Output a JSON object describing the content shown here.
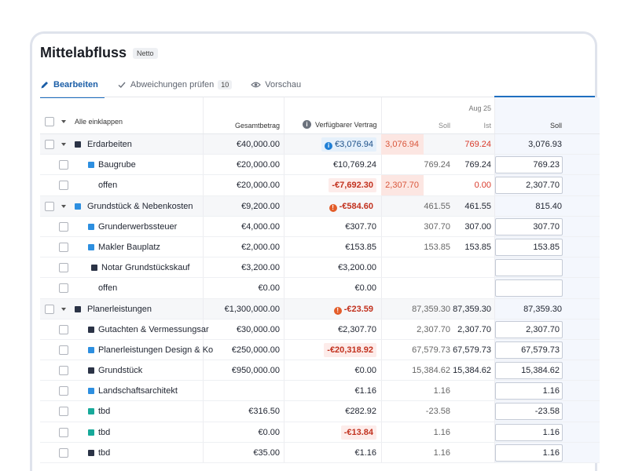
{
  "title": "Mittelabfluss",
  "title_badge": "Netto",
  "tabs": [
    {
      "label": "Bearbeiten",
      "icon": "pencil-icon"
    },
    {
      "label": "Abweichungen prüfen",
      "count": "10",
      "icon": "check-icon"
    },
    {
      "label": "Vorschau",
      "icon": "eye-icon"
    }
  ],
  "header": {
    "collapse_all": "Alle einklappen",
    "total": "Gesamtbetrag",
    "available": "Verfügbarer Vertrag",
    "month": "Aug 25",
    "soll": "Soll",
    "ist": "Ist",
    "soll2": "Soll"
  },
  "rows": [
    {
      "name": "Erdarbeiten",
      "total": "€40,000.00",
      "available": "€3,076.94",
      "soll": "3,076.94",
      "ist": "769.24",
      "soll2": "3,076.93"
    },
    {
      "name": "Baugrube",
      "total": "€20,000.00",
      "available": "€10,769.24",
      "soll": "769.24",
      "ist": "769.24",
      "soll2": "769.23"
    },
    {
      "name": "offen",
      "total": "€20,000.00",
      "available": "-€7,692.30",
      "soll": "2,307.70",
      "ist": "0.00",
      "soll2": "2,307.70"
    },
    {
      "name": "Grundstück & Nebenkosten",
      "total": "€9,200.00",
      "available": "-€584.60",
      "soll": "461.55",
      "ist": "461.55",
      "soll2": "815.40"
    },
    {
      "name": "Grunderwerbssteuer",
      "total": "€4,000.00",
      "available": "€307.70",
      "soll": "307.70",
      "ist": "307.00",
      "soll2": "307.70"
    },
    {
      "name": "Makler Bauplatz",
      "total": "€2,000.00",
      "available": "€153.85",
      "soll": "153.85",
      "ist": "153.85",
      "soll2": "153.85"
    },
    {
      "name": "Notar Grundstückskauf",
      "total": "€3,200.00",
      "available": "€3,200.00",
      "soll": "",
      "ist": "",
      "soll2": ""
    },
    {
      "name": "offen",
      "total": "€0.00",
      "available": "€0.00",
      "soll": "",
      "ist": "",
      "soll2": ""
    },
    {
      "name": "Planerleistungen",
      "total": "€1,300,000.00",
      "available": "-€23.59",
      "soll": "87,359.30",
      "ist": "87,359.30",
      "soll2": "87,359.30"
    },
    {
      "name": "Gutachten & Vermessungsar",
      "total": "€30,000.00",
      "available": "€2,307.70",
      "soll": "2,307.70",
      "ist": "2,307.70",
      "soll2": "2,307.70"
    },
    {
      "name": "Planerleistungen Design & Ko",
      "total": "€250,000.00",
      "available": "-€20,318.92",
      "soll": "67,579.73",
      "ist": "67,579.73",
      "soll2": "67,579.73"
    },
    {
      "name": "Grundstück",
      "total": "€950,000.00",
      "available": "€0.00",
      "soll": "15,384.62",
      "ist": "15,384.62",
      "soll2": "15,384.62"
    },
    {
      "name": "Landschaftsarchitekt",
      "total": "",
      "available": "€1.16",
      "soll": "1.16",
      "ist": "",
      "soll2": "1.16"
    },
    {
      "name": "tbd",
      "total": "€316.50",
      "available": "€282.92",
      "soll": "-23.58",
      "ist": "",
      "soll2": "-23.58"
    },
    {
      "name": "tbd",
      "total": "€0.00",
      "available": "-€13.84",
      "soll": "1.16",
      "ist": "",
      "soll2": "1.16"
    },
    {
      "name": "tbd",
      "total": "€35.00",
      "available": "€1.16",
      "soll": "1.16",
      "ist": "",
      "soll2": "1.16"
    }
  ],
  "colors": {
    "accent": "#1f6fc0",
    "dark_square": "#2b3346",
    "blue_square": "#2d8fe0",
    "teal_square": "#17a99a",
    "negative": "#c2321f"
  }
}
